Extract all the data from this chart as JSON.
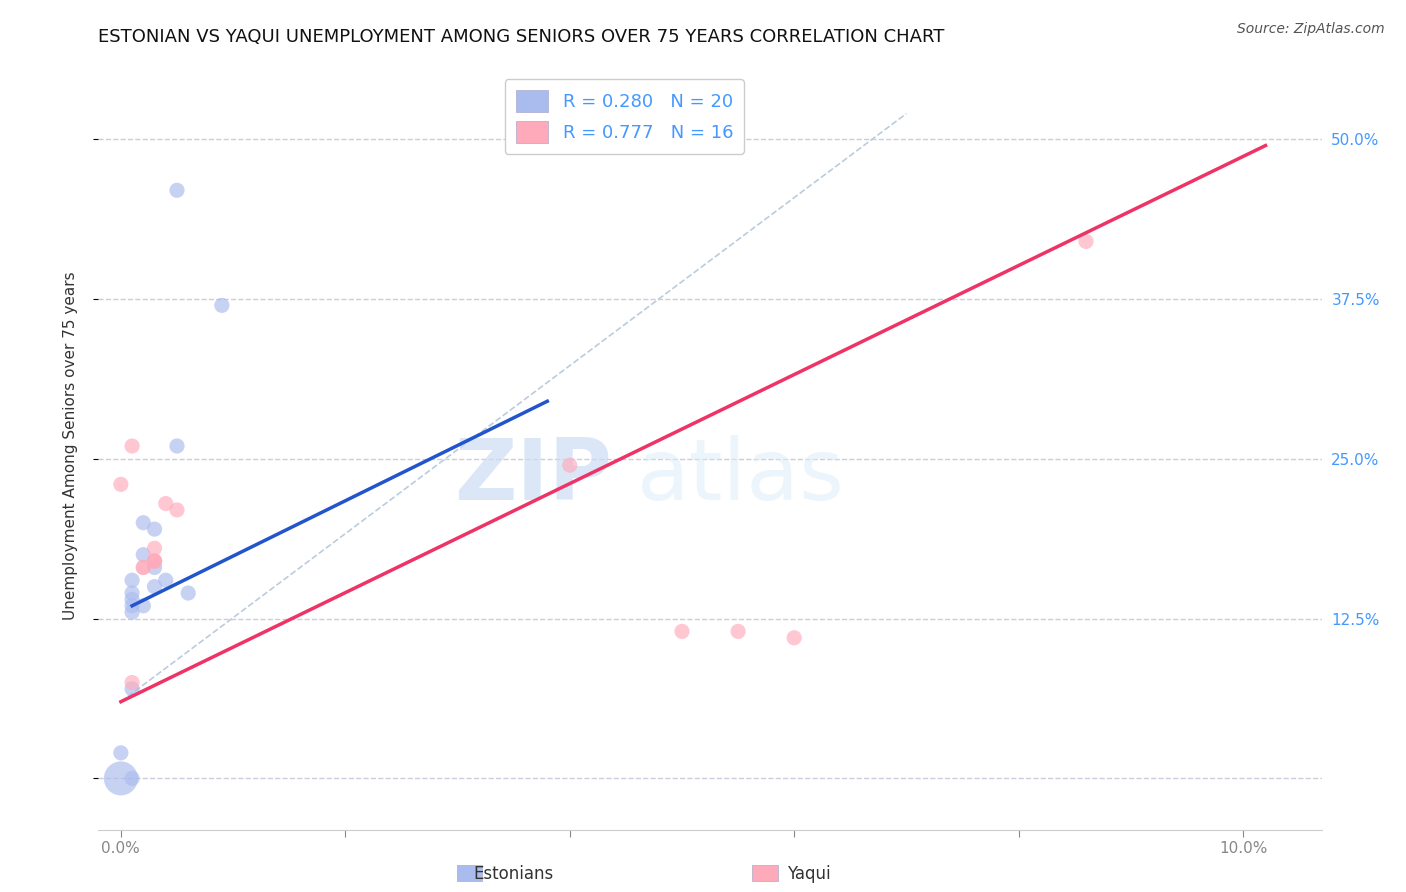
{
  "title": "ESTONIAN VS YAQUI UNEMPLOYMENT AMONG SENIORS OVER 75 YEARS CORRELATION CHART",
  "source": "Source: ZipAtlas.com",
  "ylabel_label": "Unemployment Among Seniors over 75 years",
  "x_ticks": [
    0.0,
    0.02,
    0.04,
    0.06,
    0.08,
    0.1
  ],
  "x_tick_labels": [
    "0.0%",
    "",
    "",
    "",
    "",
    "10.0%"
  ],
  "y_ticks": [
    0.0,
    0.125,
    0.25,
    0.375,
    0.5
  ],
  "y_tick_labels_right": [
    "",
    "12.5%",
    "25.0%",
    "37.5%",
    "50.0%"
  ],
  "xlim": [
    -0.002,
    0.107
  ],
  "ylim": [
    -0.04,
    0.56
  ],
  "legend_entries": [
    {
      "label": "R = 0.280   N = 20",
      "color": "#aaccff"
    },
    {
      "label": "R = 0.777   N = 16",
      "color": "#ffaabb"
    }
  ],
  "estonians": {
    "color": "#aabbee",
    "line_color": "#2255cc",
    "scatter_x": [
      0.005,
      0.009,
      0.005,
      0.002,
      0.003,
      0.002,
      0.003,
      0.004,
      0.003,
      0.006,
      0.001,
      0.001,
      0.001,
      0.002,
      0.001,
      0.001,
      0.001,
      0.0,
      0.0,
      0.001
    ],
    "scatter_y": [
      0.46,
      0.37,
      0.26,
      0.2,
      0.195,
      0.175,
      0.165,
      0.155,
      0.15,
      0.145,
      0.155,
      0.145,
      0.14,
      0.135,
      0.135,
      0.13,
      0.07,
      0.02,
      0.0,
      0.0
    ],
    "scatter_size": [
      120,
      120,
      120,
      120,
      120,
      120,
      120,
      120,
      120,
      120,
      120,
      120,
      120,
      120,
      120,
      120,
      120,
      120,
      600,
      120
    ],
    "trendline_x": [
      0.001,
      0.038
    ],
    "trendline_y": [
      0.135,
      0.295
    ]
  },
  "yaqui": {
    "color": "#ffaabb",
    "line_color": "#ee3366",
    "scatter_x": [
      0.0,
      0.001,
      0.002,
      0.003,
      0.003,
      0.003,
      0.004,
      0.005,
      0.04,
      0.05,
      0.055,
      0.06,
      0.086,
      0.001,
      0.002,
      0.003
    ],
    "scatter_y": [
      0.23,
      0.075,
      0.165,
      0.18,
      0.17,
      0.17,
      0.215,
      0.21,
      0.245,
      0.115,
      0.115,
      0.11,
      0.42,
      0.26,
      0.165,
      0.17
    ],
    "scatter_size": [
      120,
      120,
      120,
      120,
      120,
      120,
      120,
      120,
      120,
      120,
      120,
      120,
      120,
      120,
      120,
      120
    ],
    "trendline_x": [
      0.0,
      0.102
    ],
    "trendline_y": [
      0.06,
      0.495
    ]
  },
  "watermark_zip": "ZIP",
  "watermark_atlas": "atlas",
  "title_fontsize": 13,
  "axis_label_fontsize": 11,
  "tick_fontsize": 11,
  "legend_fontsize": 13,
  "background_color": "#ffffff",
  "grid_color": "#ccccdd",
  "tick_color": "#4499ff"
}
